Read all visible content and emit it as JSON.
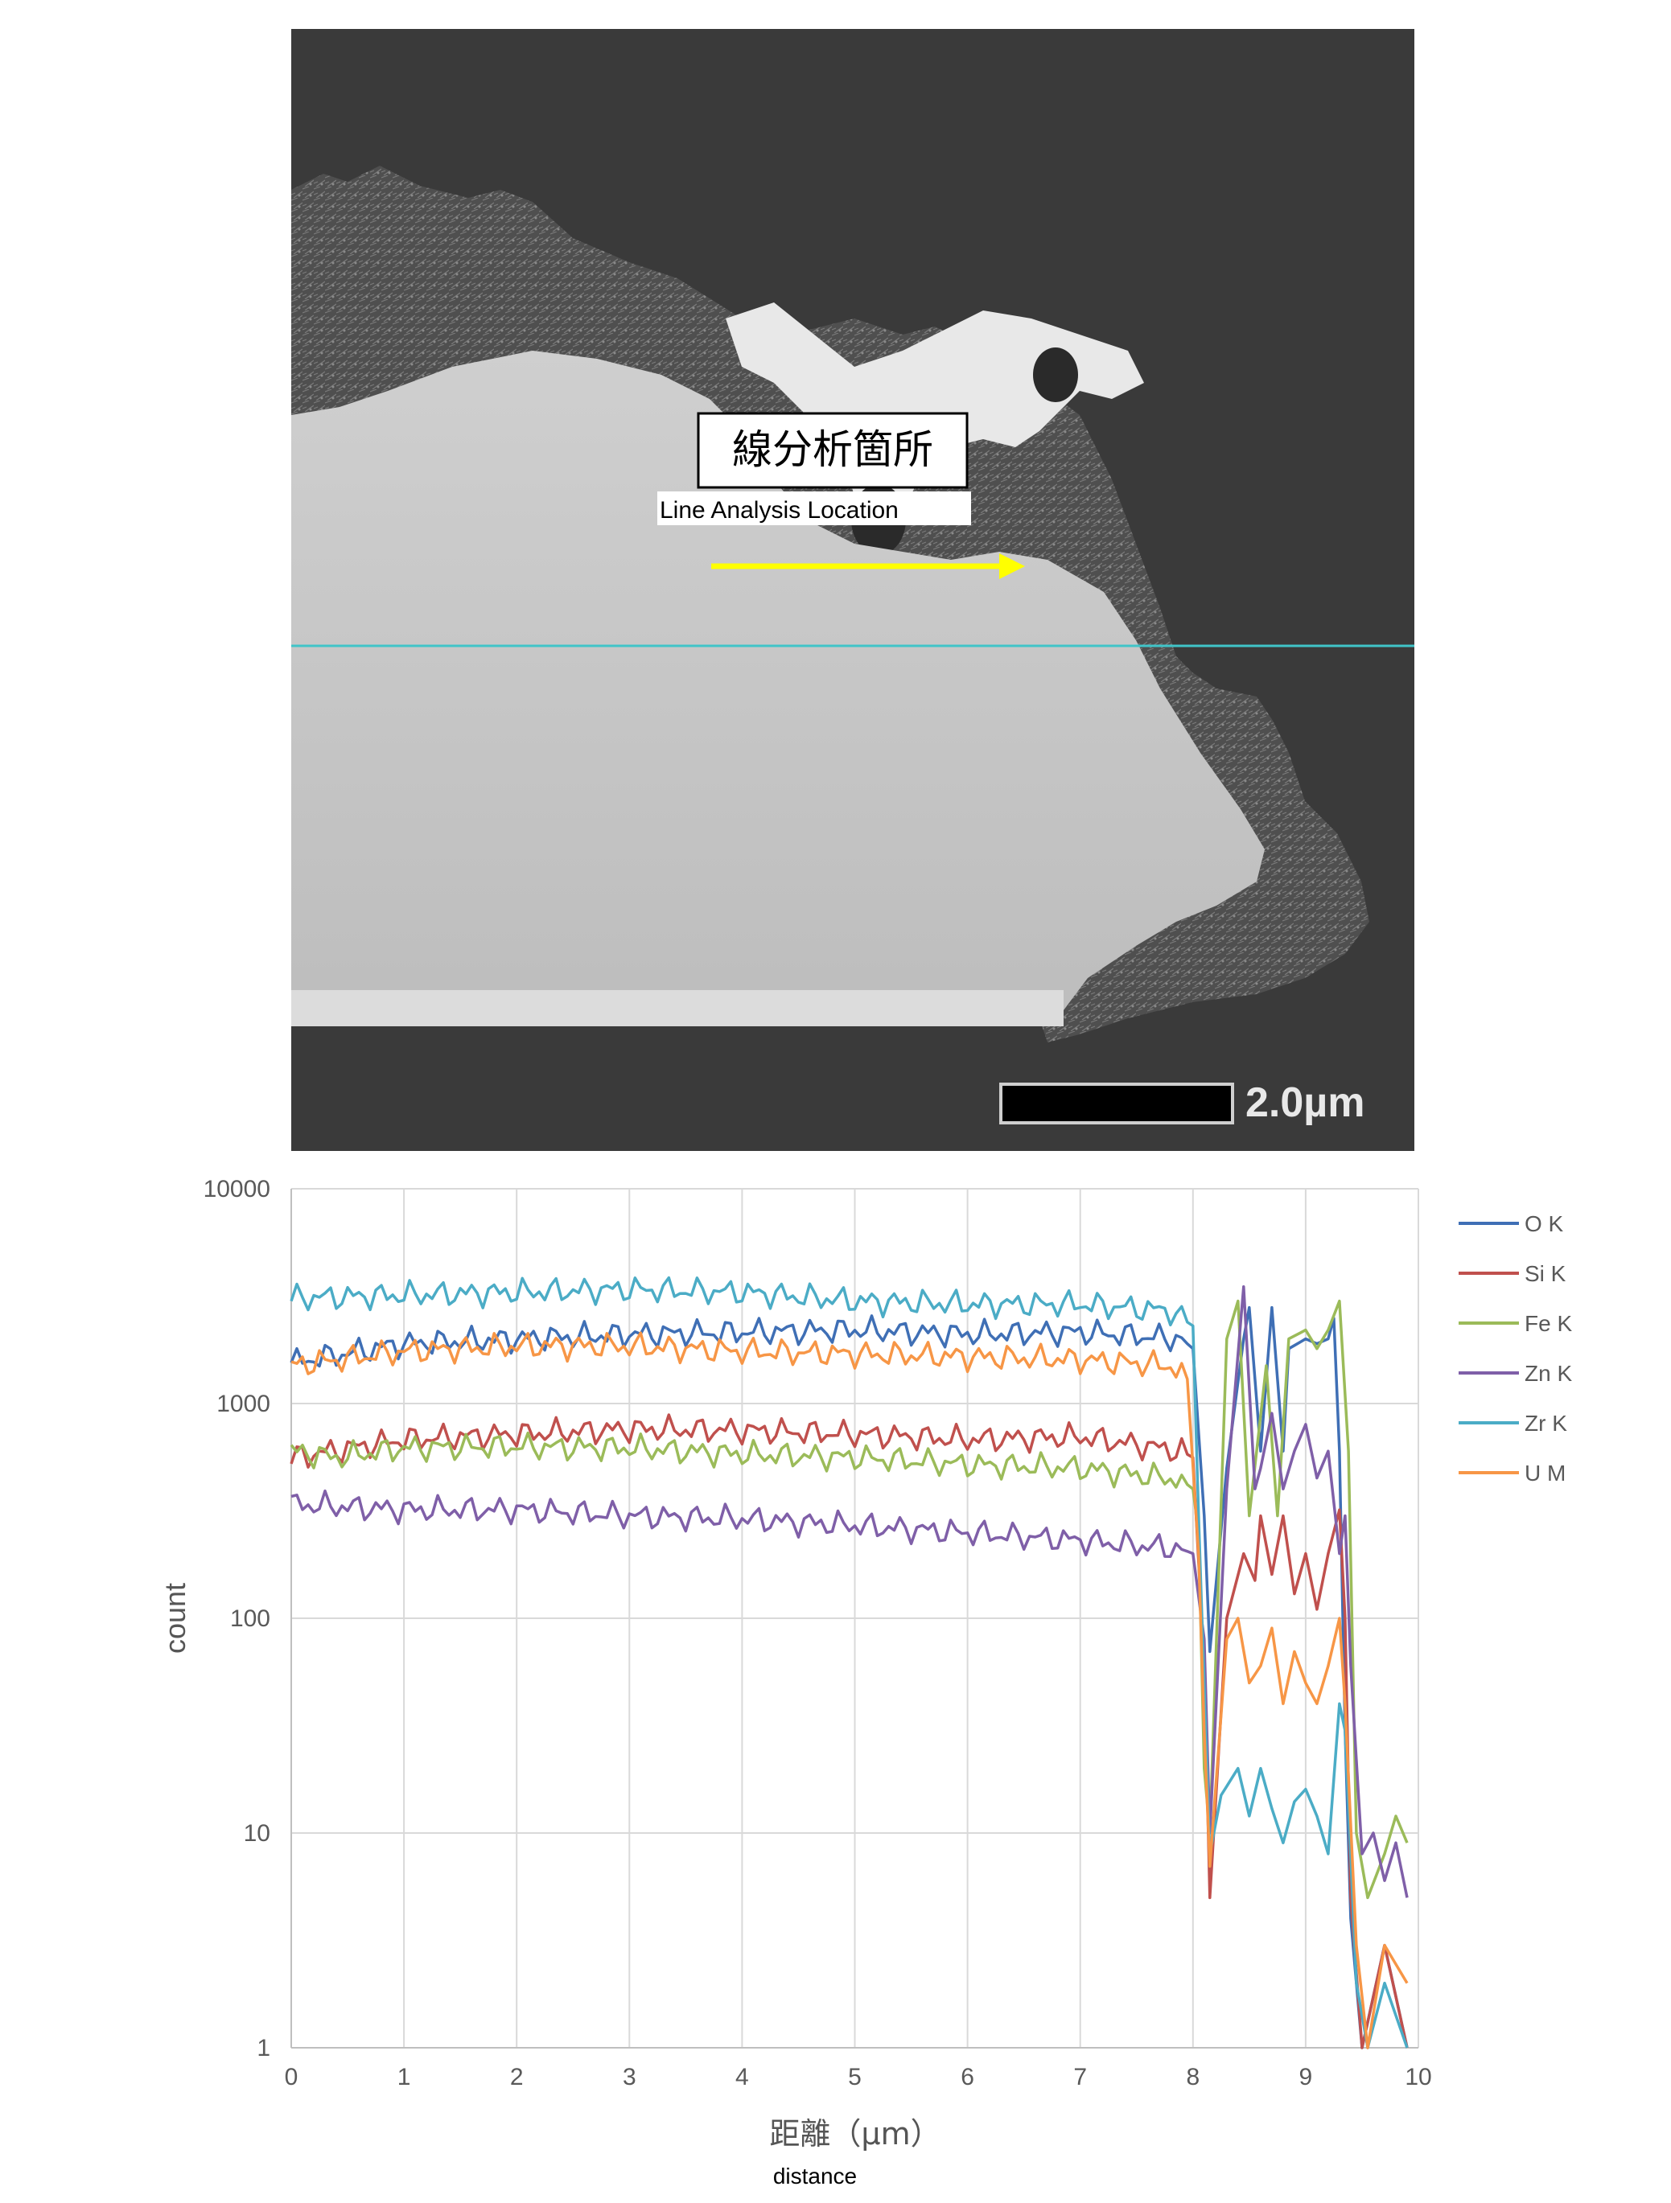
{
  "micrograph": {
    "callout_label_jp": "線分析箇所",
    "callout_label_en": "Line Analysis Location",
    "scale_bar_label": "2.0µm",
    "colors": {
      "background": "#3a3a3a",
      "particle": "#d7d7d7",
      "scan_line": "#40c4c8",
      "arrow": "#ffff00"
    }
  },
  "chart_data": {
    "type": "line",
    "title": "",
    "xlabel": "距離（µm）",
    "xlabel_en": "distance",
    "ylabel": "count",
    "x_range": [
      0,
      10
    ],
    "y_range": [
      1,
      10000
    ],
    "y_scale": "log",
    "x_ticks": [
      "0",
      "1",
      "2",
      "3",
      "4",
      "5",
      "6",
      "7",
      "8",
      "9",
      "10"
    ],
    "y_ticks": [
      "1",
      "10",
      "100",
      "1000",
      "10000"
    ],
    "grid": true,
    "legend_position": "right",
    "series": [
      {
        "name": "O K",
        "color": "#3f6fb5",
        "points": [
          [
            0,
            1550
          ],
          [
            1,
            1900
          ],
          [
            2,
            2000
          ],
          [
            3,
            2100
          ],
          [
            4,
            2150
          ],
          [
            5,
            2200
          ],
          [
            6,
            2100
          ],
          [
            7,
            2150
          ],
          [
            7.9,
            2000
          ],
          [
            8.0,
            1800
          ],
          [
            8.1,
            300
          ],
          [
            8.15,
            70
          ],
          [
            8.3,
            500
          ],
          [
            8.45,
            2000
          ],
          [
            8.5,
            2800
          ],
          [
            8.6,
            600
          ],
          [
            8.7,
            2800
          ],
          [
            8.8,
            600
          ],
          [
            8.85,
            1800
          ],
          [
            9.0,
            2000
          ],
          [
            9.1,
            1900
          ],
          [
            9.2,
            2000
          ],
          [
            9.25,
            2500
          ],
          [
            9.3,
            600
          ],
          [
            9.35,
            30
          ],
          [
            9.4,
            4
          ],
          [
            9.5,
            1
          ],
          [
            9.7,
            3
          ],
          [
            9.9,
            1
          ]
        ]
      },
      {
        "name": "Si K",
        "color": "#c0504d",
        "points": [
          [
            0,
            560
          ],
          [
            1,
            680
          ],
          [
            2,
            720
          ],
          [
            3,
            760
          ],
          [
            4,
            750
          ],
          [
            5,
            720
          ],
          [
            6,
            680
          ],
          [
            7,
            700
          ],
          [
            7.9,
            600
          ],
          [
            8.0,
            560
          ],
          [
            8.1,
            60
          ],
          [
            8.15,
            5
          ],
          [
            8.3,
            100
          ],
          [
            8.45,
            200
          ],
          [
            8.55,
            150
          ],
          [
            8.6,
            300
          ],
          [
            8.7,
            160
          ],
          [
            8.8,
            300
          ],
          [
            8.9,
            130
          ],
          [
            9.0,
            200
          ],
          [
            9.1,
            110
          ],
          [
            9.2,
            200
          ],
          [
            9.3,
            320
          ],
          [
            9.35,
            100
          ],
          [
            9.4,
            5
          ],
          [
            9.5,
            1
          ],
          [
            9.7,
            3
          ],
          [
            9.9,
            1
          ]
        ]
      },
      {
        "name": "Fe K",
        "color": "#9bbb59",
        "points": [
          [
            0,
            600
          ],
          [
            0.4,
            560
          ],
          [
            1,
            620
          ],
          [
            2,
            630
          ],
          [
            3,
            620
          ],
          [
            4,
            580
          ],
          [
            5,
            560
          ],
          [
            6,
            520
          ],
          [
            7,
            500
          ],
          [
            7.9,
            440
          ],
          [
            8.0,
            400
          ],
          [
            8.05,
            250
          ],
          [
            8.1,
            20
          ],
          [
            8.15,
            10
          ],
          [
            8.3,
            2000
          ],
          [
            8.4,
            3000
          ],
          [
            8.5,
            300
          ],
          [
            8.65,
            1500
          ],
          [
            8.75,
            300
          ],
          [
            8.85,
            2000
          ],
          [
            9.0,
            2200
          ],
          [
            9.1,
            1800
          ],
          [
            9.2,
            2200
          ],
          [
            9.3,
            3000
          ],
          [
            9.38,
            600
          ],
          [
            9.45,
            10
          ],
          [
            9.55,
            5
          ],
          [
            9.7,
            8
          ],
          [
            9.8,
            12
          ],
          [
            9.9,
            9
          ]
        ]
      },
      {
        "name": "Zn K",
        "color": "#7f5fa8",
        "points": [
          [
            0,
            340
          ],
          [
            1,
            320
          ],
          [
            2,
            320
          ],
          [
            3,
            300
          ],
          [
            4,
            290
          ],
          [
            5,
            270
          ],
          [
            6,
            250
          ],
          [
            7,
            230
          ],
          [
            7.9,
            210
          ],
          [
            8.0,
            200
          ],
          [
            8.1,
            80
          ],
          [
            8.15,
            10
          ],
          [
            8.3,
            400
          ],
          [
            8.45,
            3500
          ],
          [
            8.55,
            400
          ],
          [
            8.6,
            500
          ],
          [
            8.7,
            900
          ],
          [
            8.8,
            400
          ],
          [
            8.9,
            600
          ],
          [
            9.0,
            800
          ],
          [
            9.1,
            450
          ],
          [
            9.2,
            600
          ],
          [
            9.3,
            200
          ],
          [
            9.35,
            300
          ],
          [
            9.4,
            60
          ],
          [
            9.5,
            8
          ],
          [
            9.6,
            10
          ],
          [
            9.7,
            6
          ],
          [
            9.8,
            9
          ],
          [
            9.9,
            5
          ]
        ]
      },
      {
        "name": "Zr K",
        "color": "#4bacc6",
        "points": [
          [
            0,
            3100
          ],
          [
            1,
            3200
          ],
          [
            2,
            3300
          ],
          [
            3,
            3400
          ],
          [
            4,
            3300
          ],
          [
            5,
            3000
          ],
          [
            6,
            2900
          ],
          [
            7,
            2900
          ],
          [
            7.8,
            2700
          ],
          [
            8.0,
            2300
          ],
          [
            8.05,
            300
          ],
          [
            8.15,
            8
          ],
          [
            8.25,
            15
          ],
          [
            8.4,
            20
          ],
          [
            8.5,
            12
          ],
          [
            8.6,
            20
          ],
          [
            8.7,
            13
          ],
          [
            8.8,
            9
          ],
          [
            8.9,
            14
          ],
          [
            9.0,
            16
          ],
          [
            9.1,
            12
          ],
          [
            9.2,
            8
          ],
          [
            9.3,
            40
          ],
          [
            9.35,
            30
          ],
          [
            9.45,
            2
          ],
          [
            9.55,
            1
          ],
          [
            9.7,
            2
          ],
          [
            9.9,
            1
          ]
        ]
      },
      {
        "name": "U M",
        "color": "#f79646",
        "points": [
          [
            0,
            1500
          ],
          [
            1,
            1750
          ],
          [
            2,
            1850
          ],
          [
            3,
            1850
          ],
          [
            4,
            1750
          ],
          [
            5,
            1700
          ],
          [
            6,
            1650
          ],
          [
            7,
            1600
          ],
          [
            7.8,
            1500
          ],
          [
            7.95,
            1300
          ],
          [
            8.05,
            200
          ],
          [
            8.1,
            30
          ],
          [
            8.15,
            7
          ],
          [
            8.3,
            80
          ],
          [
            8.4,
            100
          ],
          [
            8.5,
            50
          ],
          [
            8.6,
            60
          ],
          [
            8.7,
            90
          ],
          [
            8.8,
            40
          ],
          [
            8.9,
            70
          ],
          [
            9.0,
            50
          ],
          [
            9.1,
            40
          ],
          [
            9.2,
            60
          ],
          [
            9.3,
            100
          ],
          [
            9.35,
            40
          ],
          [
            9.45,
            3
          ],
          [
            9.55,
            1
          ],
          [
            9.7,
            3
          ],
          [
            9.9,
            2
          ]
        ]
      }
    ]
  }
}
